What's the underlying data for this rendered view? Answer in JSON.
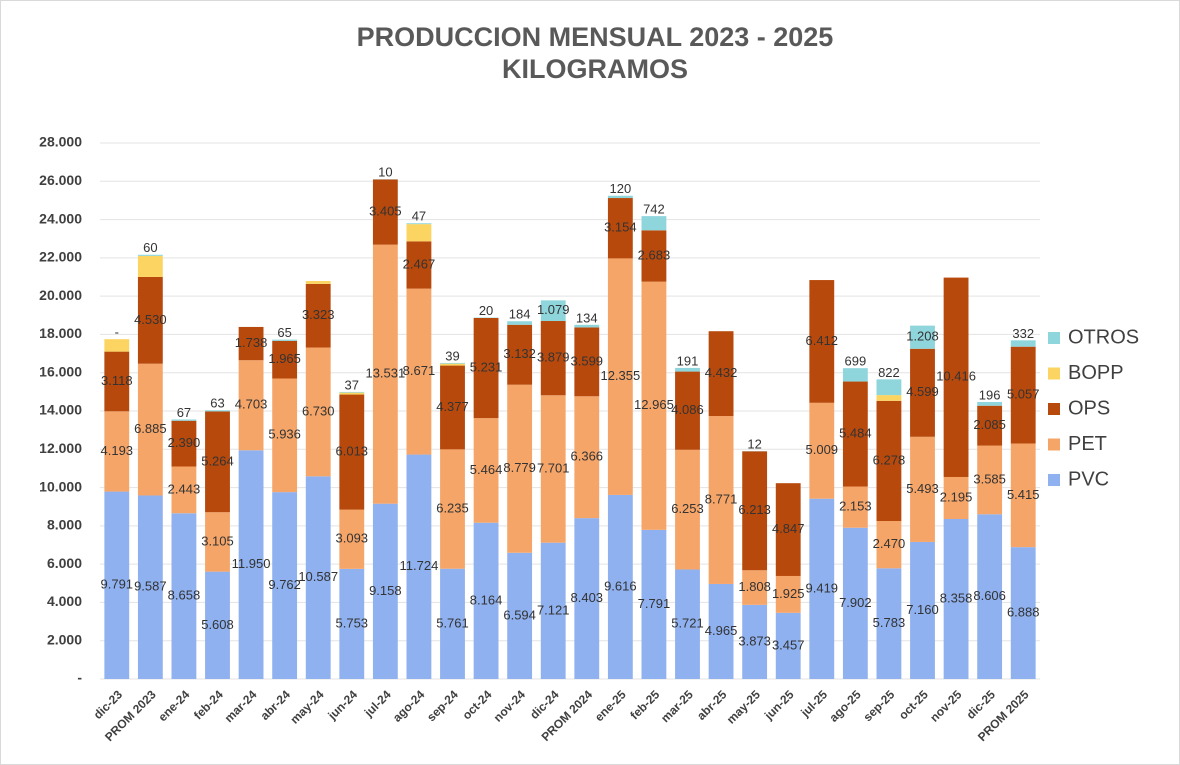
{
  "chart_data": {
    "type": "stacked_bar",
    "title": "PRODUCCION MENSUAL 2023 - 2025",
    "subtitle": "KILOGRAMOS",
    "categories": [
      "dic-23",
      "PROM 2023",
      "ene-24",
      "feb-24",
      "mar-24",
      "abr-24",
      "may-24",
      "jun-24",
      "jul-24",
      "ago-24",
      "sep-24",
      "oct-24",
      "nov-24",
      "dic-24",
      "PROM 2024",
      "ene-25",
      "feb-25",
      "mar-25",
      "abr-25",
      "may-25",
      "jun-25",
      "jul-25",
      "ago-25",
      "sep-25",
      "oct-25",
      "nov-25",
      "dic-25",
      "PROM 2025"
    ],
    "series": [
      {
        "name": "PVC",
        "color": "#8fb1f0",
        "data_labels": true,
        "values": [
          9791,
          9587,
          8658,
          5608,
          11950,
          9762,
          10587,
          5753,
          9158,
          11724,
          5761,
          8164,
          6594,
          7121,
          8403,
          9616,
          7791,
          5721,
          4965,
          3873,
          3457,
          9419,
          7902,
          5783,
          7160,
          8358,
          8606,
          6888
        ],
        "value_labels": [
          "9.791",
          "9.587",
          "8.658",
          "5.608",
          "11.950",
          "9.762",
          "10.587",
          "5.753",
          "9.158",
          "11.724",
          "5.761",
          "8.164",
          "6.594",
          "7.121",
          "8.403",
          "9.616",
          "7.791",
          "5.721",
          "4.965",
          "3.873",
          "3.457",
          "9.419",
          "7.902",
          "5.783",
          "7.160",
          "8.358",
          "8.606",
          "6.888"
        ]
      },
      {
        "name": "PET",
        "color": "#f6a568",
        "data_labels": true,
        "values": [
          4193,
          6885,
          2443,
          3105,
          4703,
          5936,
          6730,
          3093,
          13531,
          8671,
          6235,
          5464,
          8779,
          7701,
          6366,
          12355,
          12965,
          6253,
          8771,
          1808,
          1925,
          5009,
          2153,
          2470,
          5493,
          2195,
          3585,
          5415
        ],
        "value_labels": [
          "4.193",
          "6.885",
          "2.443",
          "3.105",
          "4.703",
          "5.936",
          "6.730",
          "3.093",
          "13.531",
          "8.671",
          "6.235",
          "5.464",
          "8.779",
          "7.701",
          "6.366",
          "12.355",
          "12.965",
          "6.253",
          "8.771",
          "1.808",
          "1.925",
          "5.009",
          "2.153",
          "2.470",
          "5.493",
          "2.195",
          "3.585",
          "5.415"
        ]
      },
      {
        "name": "OPS",
        "color": "#b8490c",
        "data_labels": true,
        "values": [
          3118,
          4530,
          2390,
          5264,
          1738,
          1965,
          3323,
          6013,
          3405,
          2467,
          4377,
          5231,
          3132,
          3879,
          3599,
          3154,
          2683,
          4086,
          4432,
          6213,
          4847,
          6412,
          5484,
          6278,
          4599,
          10416,
          2085,
          5057
        ],
        "value_labels": [
          "3.118",
          "4.530",
          "2.390",
          "5.264",
          "1.738",
          "1.965",
          "3.323",
          "6.013",
          "3.405",
          "2.467",
          "4.377",
          "5.231",
          "3.132",
          "3.879",
          "3.599",
          "3.154",
          "2.683",
          "4.086",
          "4.432",
          "6.213",
          "4.847",
          "6.412",
          "5.484",
          "6.278",
          "4.599",
          "10.416",
          "2.085",
          "5.057"
        ]
      },
      {
        "name": "BOPP",
        "color": "#fbd462",
        "data_labels": false,
        "values": [
          650,
          1100,
          null,
          null,
          null,
          null,
          150,
          100,
          null,
          900,
          100,
          null,
          null,
          null,
          null,
          null,
          null,
          null,
          null,
          null,
          null,
          null,
          null,
          300,
          null,
          null,
          null,
          null
        ]
      },
      {
        "name": "OTROS",
        "color": "#8fd6dc",
        "data_labels": true,
        "values": [
          0,
          60,
          67,
          63,
          null,
          65,
          null,
          37,
          10,
          47,
          39,
          20,
          184,
          1079,
          134,
          120,
          742,
          191,
          null,
          12,
          null,
          null,
          699,
          822,
          1208,
          null,
          196,
          332
        ],
        "value_labels": [
          "-",
          "60",
          "67",
          "63",
          null,
          "65",
          null,
          "37",
          "10",
          "47",
          "39",
          "20",
          "184",
          "1.079",
          "134",
          "120",
          "742",
          "191",
          null,
          "12",
          null,
          null,
          "699",
          "822",
          "1.208",
          null,
          "196",
          "332"
        ]
      }
    ],
    "ylim": [
      0,
      28000
    ],
    "yticks": [
      {
        "value": 0,
        "label": "-"
      },
      {
        "value": 2000,
        "label": "2.000"
      },
      {
        "value": 4000,
        "label": "4.000"
      },
      {
        "value": 6000,
        "label": "6.000"
      },
      {
        "value": 8000,
        "label": "8.000"
      },
      {
        "value": 10000,
        "label": "10.000"
      },
      {
        "value": 12000,
        "label": "12.000"
      },
      {
        "value": 14000,
        "label": "14.000"
      },
      {
        "value": 16000,
        "label": "16.000"
      },
      {
        "value": 18000,
        "label": "18.000"
      },
      {
        "value": 20000,
        "label": "20.000"
      },
      {
        "value": 22000,
        "label": "22.000"
      },
      {
        "value": 24000,
        "label": "24.000"
      },
      {
        "value": 26000,
        "label": "26.000"
      },
      {
        "value": 28000,
        "label": "28.000"
      }
    ],
    "grid": true,
    "legend": "right"
  }
}
